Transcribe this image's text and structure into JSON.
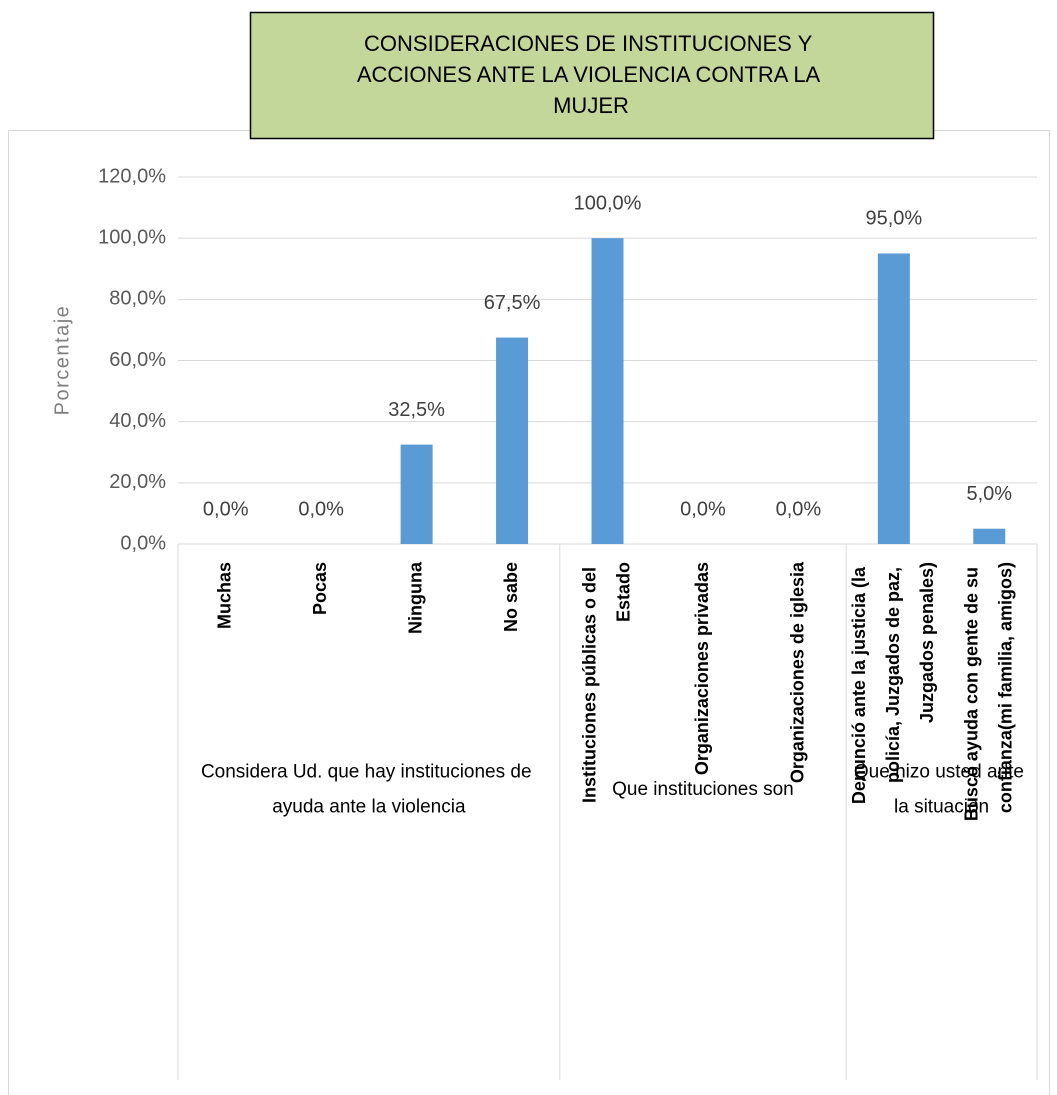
{
  "chart_data": {
    "type": "bar",
    "title": "CONSIDERACIONES DE INSTITUCIONES Y ACCIONES ANTE LA VIOLENCIA CONTRA LA MUJER",
    "y_label": "Porcentaje",
    "categories": [
      "Muchas",
      "Pocas",
      "Ninguna",
      "No sabe",
      "Instituciones públicas o del Estado",
      "Organizaciones privadas",
      "Organizaciones de iglesia",
      "Denunció ante la justicia (la policía, Juzgados de paz, Juzgados penales)",
      "Buscó ayuda con gente de su confianza(mi familia, amigos)"
    ],
    "values": [
      0,
      0,
      32.5,
      67.5,
      100,
      0,
      0,
      95,
      5
    ],
    "value_labels": [
      "0,0%",
      "0,0%",
      "32,5%",
      "67,5%",
      "100,0%",
      "0,0%",
      "0,0%",
      "95,0%",
      "5,0%"
    ],
    "groups": [
      {
        "label": "Considera Ud. que hay instituciones de ayuda ante la violencia",
        "span": 4
      },
      {
        "label": "Que instituciones son",
        "span": 3
      },
      {
        "label": "Que hizo usted ante la situación",
        "span": 2
      }
    ],
    "color": "#5b9bd5",
    "ylim": [
      0,
      120
    ],
    "yticks": [
      {
        "value": 0,
        "label": "0,0%"
      },
      {
        "value": 20,
        "label": "20,0%"
      },
      {
        "value": 40,
        "label": "40,0%"
      },
      {
        "value": 60,
        "label": "60,0%"
      },
      {
        "value": 80,
        "label": "80,0%"
      },
      {
        "value": 100,
        "label": "100,0%"
      },
      {
        "value": 120,
        "label": "120,0%"
      }
    ],
    "grid": true
  }
}
